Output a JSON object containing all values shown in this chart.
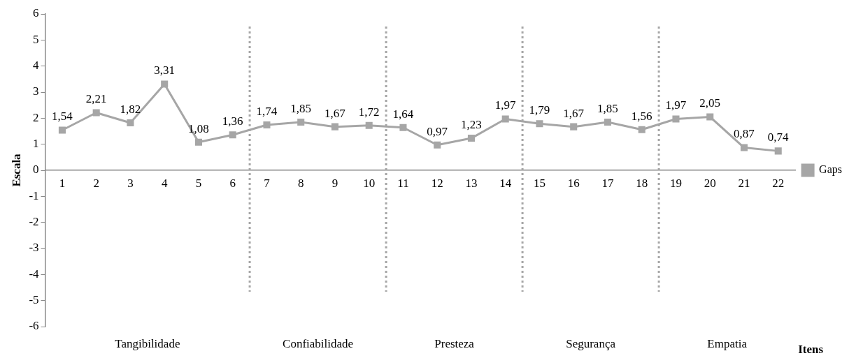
{
  "chart_data": {
    "type": "line",
    "xlabel": "Itens",
    "ylabel": "Escala",
    "x": [
      1,
      2,
      3,
      4,
      5,
      6,
      7,
      8,
      9,
      10,
      11,
      12,
      13,
      14,
      15,
      16,
      17,
      18,
      19,
      20,
      21,
      22
    ],
    "series": [
      {
        "name": "Gaps",
        "color": "#a6a6a6",
        "values": [
          1.54,
          2.21,
          1.82,
          3.31,
          1.08,
          1.36,
          1.74,
          1.85,
          1.67,
          1.72,
          1.64,
          0.97,
          1.23,
          1.97,
          1.79,
          1.67,
          1.85,
          1.56,
          1.97,
          2.05,
          0.87,
          0.74
        ]
      }
    ],
    "xlim": [
      0.5,
      22.5
    ],
    "xticks": [
      1,
      2,
      3,
      4,
      5,
      6,
      7,
      8,
      9,
      10,
      11,
      12,
      13,
      14,
      15,
      16,
      17,
      18,
      19,
      20,
      21,
      22
    ],
    "ylim": [
      -6,
      6
    ],
    "yticks": [
      -6,
      -5,
      -4,
      -3,
      -2,
      -1,
      0,
      1,
      2,
      3,
      4,
      5,
      6
    ],
    "ref_lines": [
      {
        "axis": "x",
        "value": 6.5,
        "line_style": "dotted",
        "color": "#a6a6a6"
      },
      {
        "axis": "x",
        "value": 10.5,
        "line_style": "dotted",
        "color": "#a6a6a6"
      },
      {
        "axis": "x",
        "value": 14.5,
        "line_style": "dotted",
        "color": "#a6a6a6"
      },
      {
        "axis": "x",
        "value": 18.5,
        "line_style": "dotted",
        "color": "#a6a6a6"
      }
    ],
    "annotations": [
      "Tangibilidade",
      "Confiabilidade",
      "Presteza",
      "Segurança",
      "Empatia"
    ],
    "value_labels": [
      "1,54",
      "2,21",
      "1,82",
      "3,31",
      "1,08",
      "1,36",
      "1,74",
      "1,85",
      "1,67",
      "1,72",
      "1,64",
      "0,97",
      "1,23",
      "1,97",
      "1,79",
      "1,67",
      "1,85",
      "1,56",
      "1,97",
      "2,05",
      "0,87",
      "0,74"
    ],
    "grid": false,
    "legend": "right",
    "marker": "square",
    "line_style": "solid"
  }
}
